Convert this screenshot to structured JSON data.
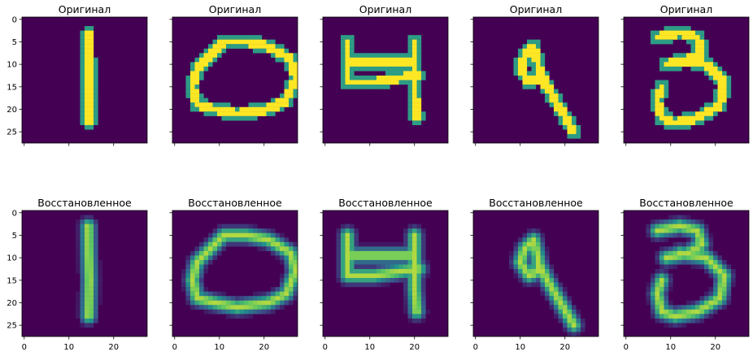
{
  "figure": {
    "rows": [
      {
        "title": "Оригинал"
      },
      {
        "title": "Восстановленное"
      }
    ],
    "digits": [
      "1",
      "0",
      "4",
      "9",
      "3"
    ],
    "y_ticks": [
      "0",
      "5",
      "10",
      "15",
      "20",
      "25"
    ],
    "x_ticks": [
      "0",
      "10",
      "20"
    ]
  },
  "chart_data": [
    {
      "type": "heatmap",
      "grid": "4x? not applicable",
      "description_rows": "2 rows x 5 columns of 28x28 grayscale images rendered with viridis colormap",
      "image_size": [
        28,
        28
      ],
      "colormap": "viridis",
      "xlim": [
        -0.5,
        27.5
      ],
      "ylim": [
        27.5,
        -0.5
      ],
      "yticks": [
        0,
        5,
        10,
        15,
        20,
        25
      ],
      "xticks": [
        0,
        10,
        20
      ],
      "titles": [
        "Оригинал",
        "Оригинал",
        "Оригинал",
        "Оригинал",
        "Оригинал",
        "Восстановленное",
        "Восстановленное",
        "Восстановленное",
        "Восстановленное",
        "Восстановленное"
      ]
    }
  ],
  "colors": {
    "background": "#440154",
    "mid": "#21918c",
    "bright": "#fde725",
    "green": "#5ec962"
  }
}
